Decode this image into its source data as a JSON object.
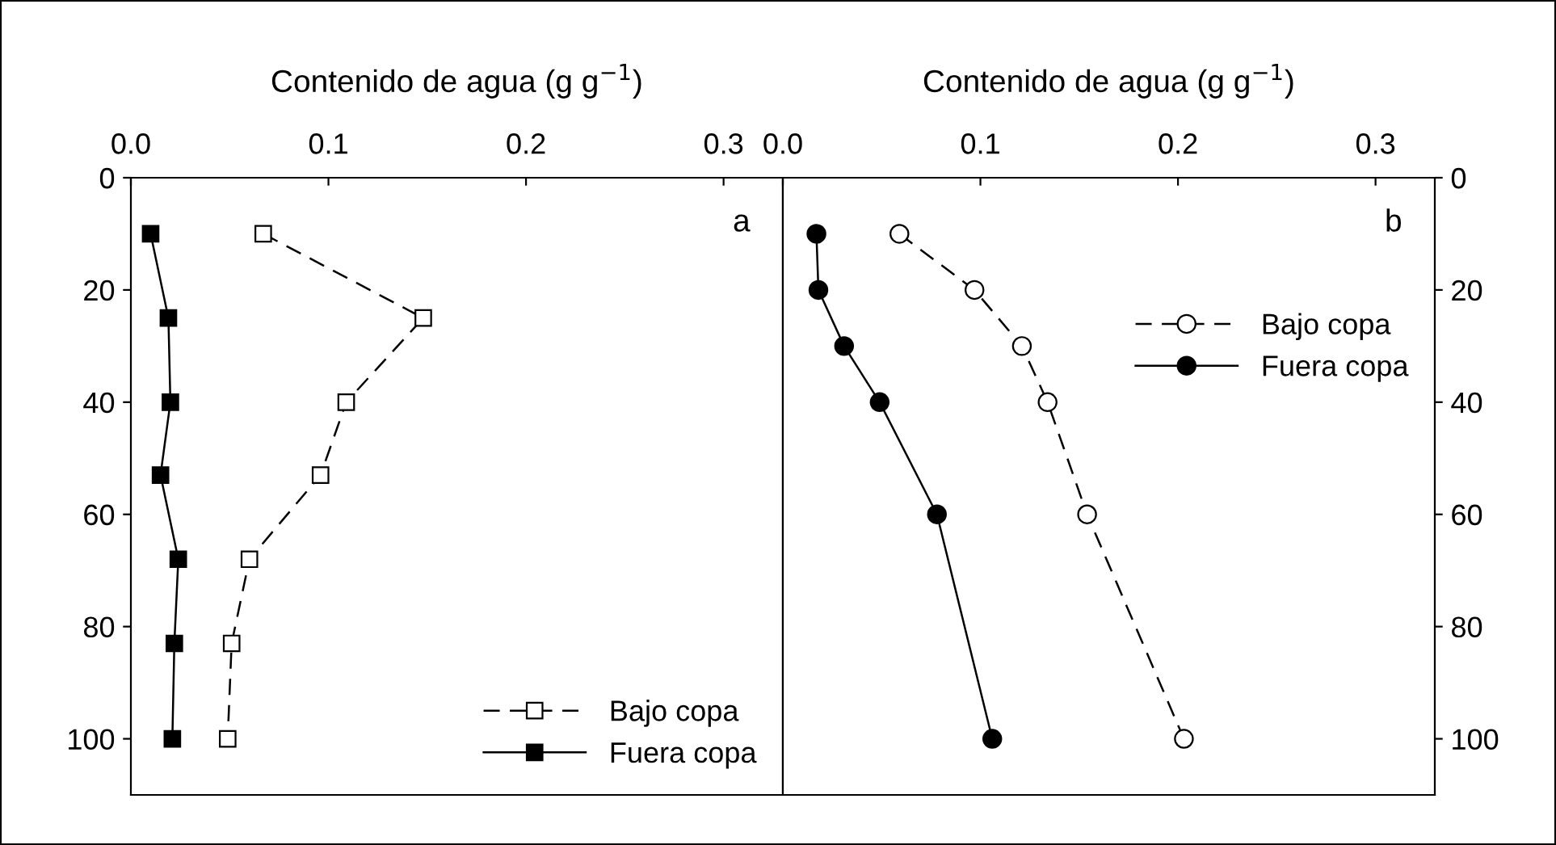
{
  "chart_data": [
    {
      "type": "line",
      "xlabel": "Contenido de agua (g g$^{−1}$)",
      "annotations": [
        "a"
      ],
      "xlim": [
        0,
        0.33
      ],
      "ylim": [
        110,
        0
      ],
      "xticks": [
        {
          "value": 0,
          "label": "0.0"
        },
        {
          "value": 0.1,
          "label": "0.1"
        },
        {
          "value": 0.2,
          "label": "0.2"
        },
        {
          "value": 0.3,
          "label": "0.3"
        }
      ],
      "yticks": [
        0,
        20,
        40,
        60,
        80,
        100
      ],
      "legend": "bottom right",
      "grid": false,
      "series": [
        {
          "name": "Bajo copa",
          "color": "#000000",
          "marker": "square",
          "line_style": "dashed",
          "x": [
            0.067,
            0.148,
            0.109,
            0.096,
            0.06,
            0.051,
            0.049
          ],
          "values": [
            10,
            25,
            40,
            53,
            68,
            83,
            100
          ]
        },
        {
          "name": "Fuera copa",
          "color": "#000000",
          "marker": "square",
          "line_style": "solid",
          "x": [
            0.01,
            0.019,
            0.02,
            0.015,
            0.024,
            0.022,
            0.021
          ],
          "values": [
            10,
            25,
            40,
            53,
            68,
            83,
            100
          ]
        }
      ]
    },
    {
      "type": "line",
      "xlabel": "Contenido de agua (g g$^{−1}$)",
      "annotations": [
        "b"
      ],
      "xlim": [
        0,
        0.33
      ],
      "ylim": [
        110,
        0
      ],
      "xticks": [
        {
          "value": 0,
          "label": "0.0"
        },
        {
          "value": 0.1,
          "label": "0.1"
        },
        {
          "value": 0.2,
          "label": "0.2"
        },
        {
          "value": 0.3,
          "label": "0.3"
        }
      ],
      "yticks": [
        0,
        20,
        40,
        60,
        80,
        100
      ],
      "legend": "right",
      "grid": false,
      "series": [
        {
          "name": "Bajo copa",
          "color": "#000000",
          "marker": "circle",
          "line_style": "dashed",
          "x": [
            0.059,
            0.097,
            0.121,
            0.134,
            0.154,
            0.203
          ],
          "values": [
            10,
            20,
            30,
            40,
            60,
            100
          ]
        },
        {
          "name": "Fuera copa",
          "color": "#000000",
          "marker": "circle",
          "line_style": "solid",
          "x": [
            0.017,
            0.018,
            0.031,
            0.049,
            0.078,
            0.106
          ],
          "values": [
            10,
            20,
            30,
            40,
            60,
            100
          ]
        }
      ]
    }
  ]
}
